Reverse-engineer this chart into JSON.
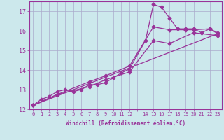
{
  "background_color": "#cce8ec",
  "grid_color": "#aaaacc",
  "line_color": "#993399",
  "xlabel": "Windchill (Refroidissement éolien,°C)",
  "xlim": [
    -0.5,
    23.5
  ],
  "ylim": [
    12,
    17.5
  ],
  "yticks": [
    12,
    13,
    14,
    15,
    16,
    17
  ],
  "xtick_positions": [
    0,
    1,
    2,
    3,
    4,
    5,
    6,
    7,
    8,
    9,
    10,
    11,
    12,
    13,
    14,
    15,
    16,
    17,
    18,
    19,
    20,
    21,
    22,
    23
  ],
  "xtick_labels": [
    "0",
    "1",
    "2",
    "3",
    "4",
    "5",
    "6",
    "7",
    "8",
    "9",
    "10",
    "11",
    "12",
    "",
    "14",
    "15",
    "16",
    "17",
    "18",
    "19",
    "20",
    "21",
    "22",
    "23"
  ],
  "series1_x": [
    0,
    1,
    2,
    3,
    4,
    5,
    6,
    7,
    8,
    9,
    10,
    11,
    12,
    14,
    15,
    16,
    17,
    18,
    19,
    20,
    21,
    22,
    23
  ],
  "series1_y": [
    12.2,
    12.5,
    12.65,
    12.9,
    13.0,
    12.9,
    13.0,
    13.25,
    13.25,
    13.35,
    13.6,
    13.85,
    14.05,
    15.5,
    17.35,
    17.2,
    16.65,
    16.1,
    16.1,
    16.1,
    15.9,
    16.1,
    15.85
  ],
  "series2_x": [
    0,
    3,
    7,
    9,
    12,
    15,
    17,
    19,
    20,
    22,
    23
  ],
  "series2_y": [
    12.2,
    12.75,
    13.4,
    13.7,
    14.2,
    16.2,
    16.05,
    16.05,
    16.05,
    16.1,
    15.9
  ],
  "series3_x": [
    0,
    3,
    7,
    9,
    12,
    15,
    17,
    20,
    23
  ],
  "series3_y": [
    12.2,
    12.75,
    13.15,
    13.5,
    13.9,
    15.5,
    15.35,
    15.9,
    15.75
  ],
  "series4_x": [
    0,
    23
  ],
  "series4_y": [
    12.2,
    15.85
  ]
}
